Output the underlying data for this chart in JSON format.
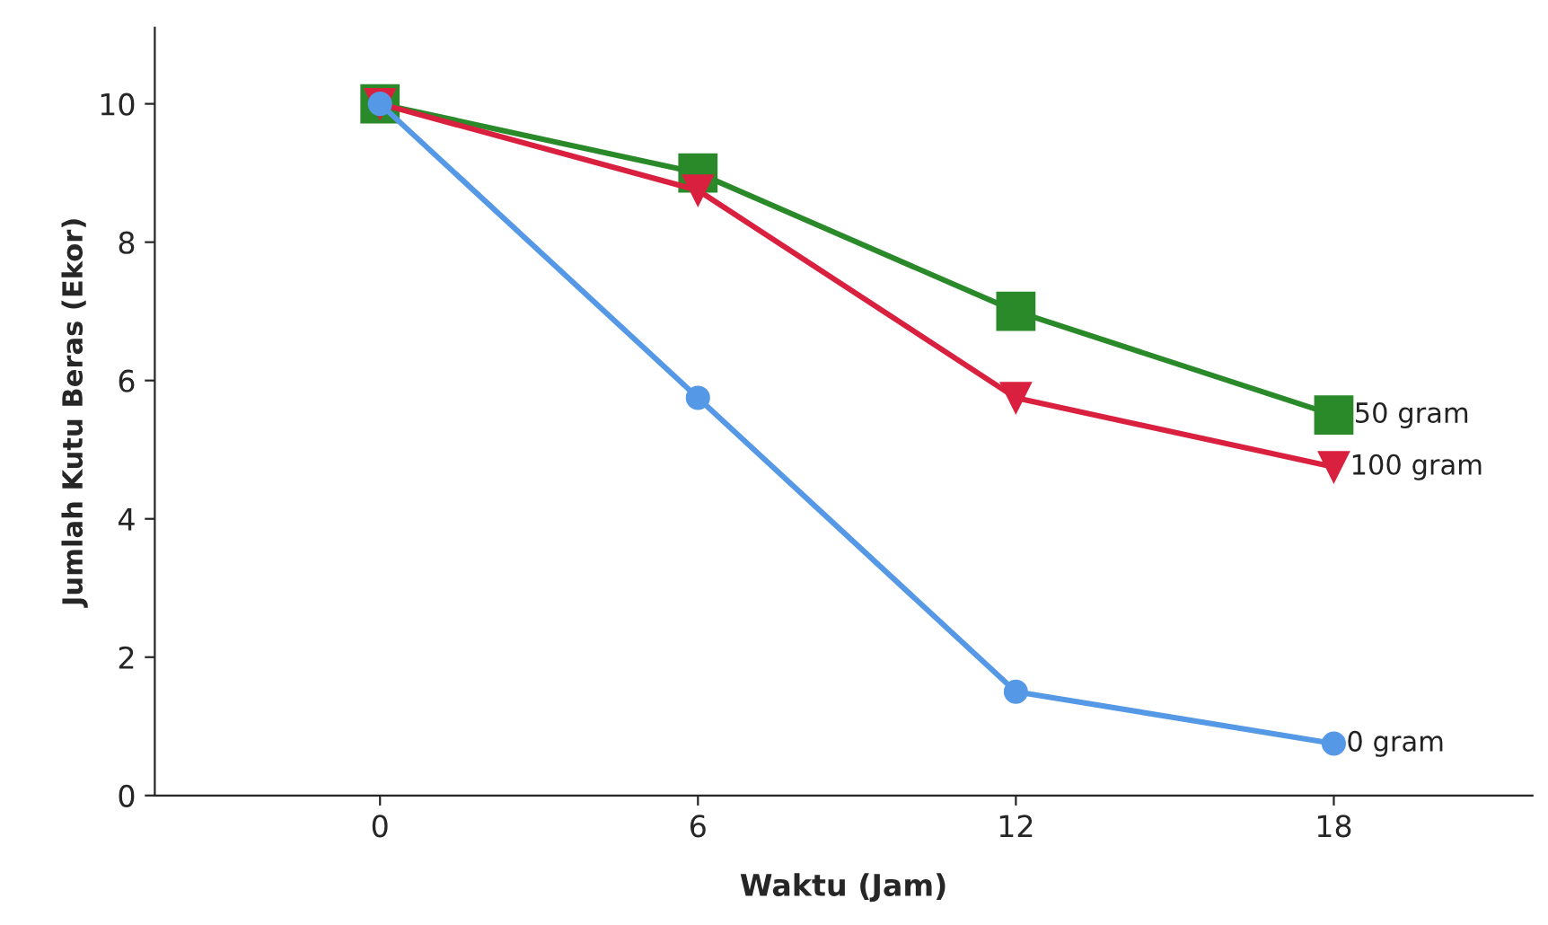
{
  "chart_data": {
    "type": "line",
    "xlabel": "Waktu (Jam)",
    "ylabel": "Jumlah Kutu Beras (Ekor)",
    "x": [
      0,
      6,
      12,
      18
    ],
    "series": [
      {
        "name": "50 gram",
        "color": "#2a8a2a",
        "marker": "square",
        "values": [
          10,
          9,
          7,
          5.5
        ]
      },
      {
        "name": "100 gram",
        "color": "#d9203f",
        "marker": "triangle",
        "values": [
          10,
          8.75,
          5.75,
          4.75
        ]
      },
      {
        "name": "0 gram",
        "color": "#5599e6",
        "marker": "circle",
        "values": [
          10,
          5.75,
          1.5,
          0.75
        ]
      }
    ],
    "xlim": [
      -4.25,
      21.75
    ],
    "ylim": [
      0,
      11.1
    ],
    "xticks": [
      0,
      6,
      12,
      18
    ],
    "yticks": [
      0,
      2,
      4,
      6,
      8,
      10
    ],
    "grid": false,
    "legend": false
  }
}
